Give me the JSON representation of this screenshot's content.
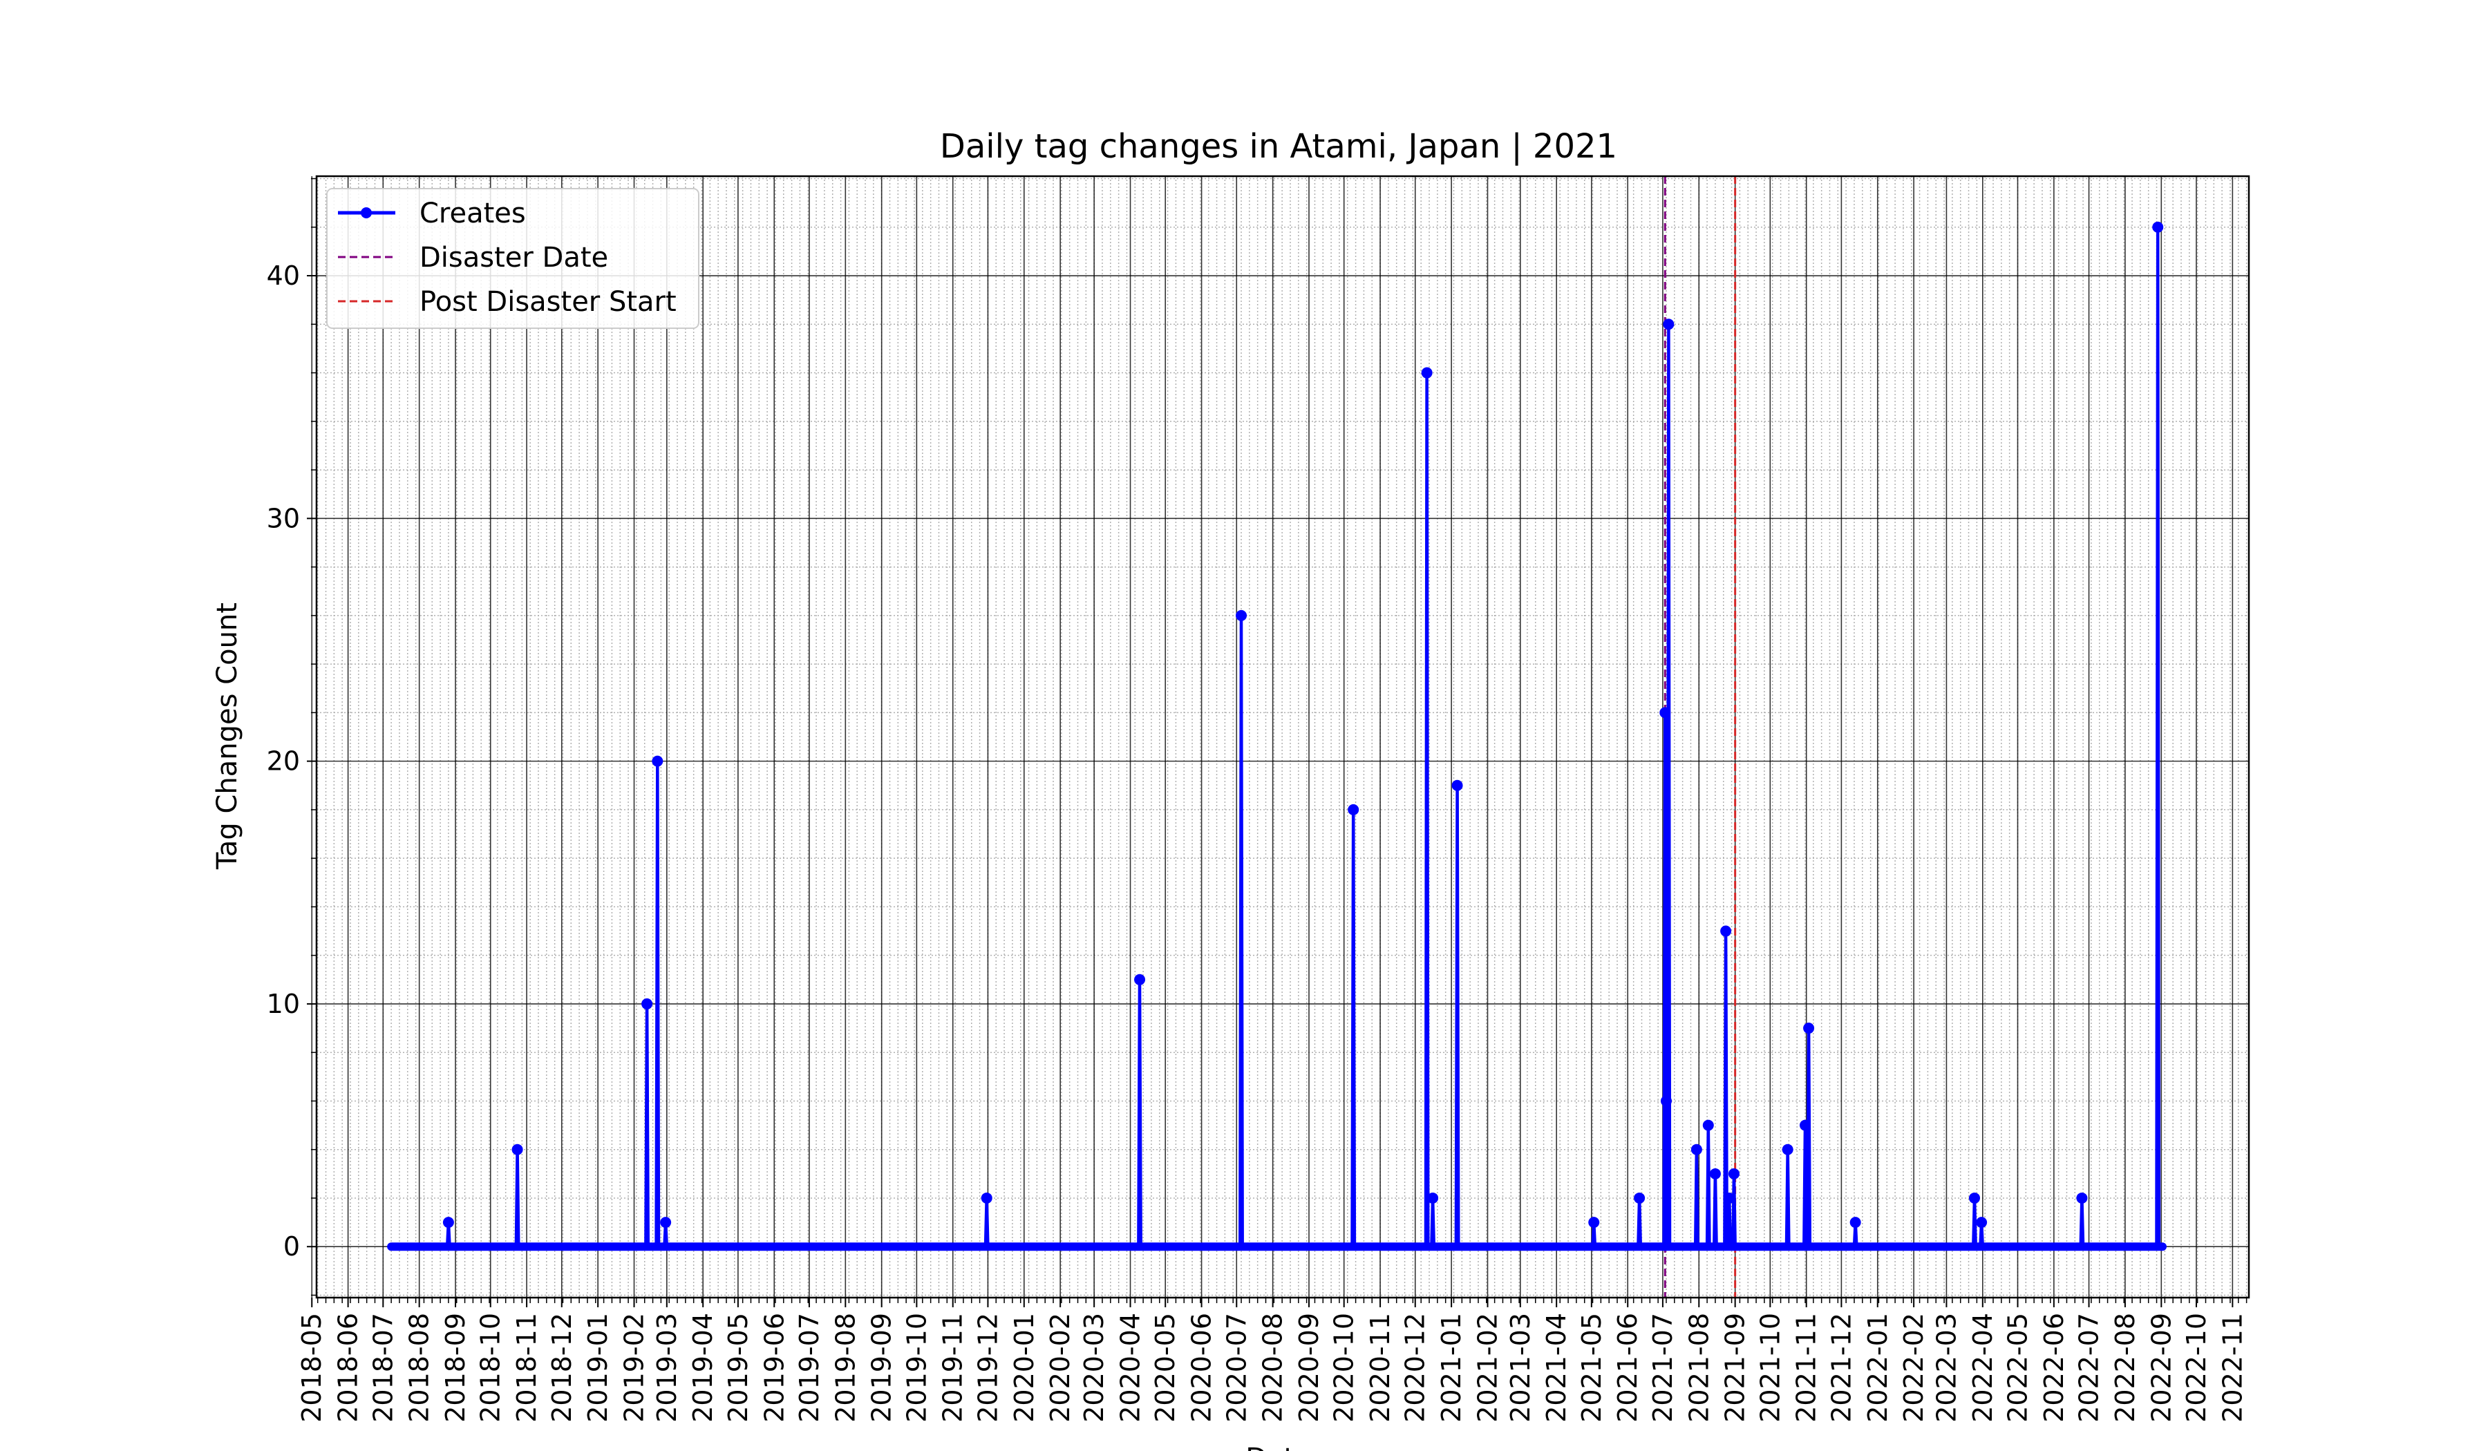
{
  "chart_data": {
    "type": "line",
    "title": "Daily tag changes in Atami, Japan | 2021",
    "xlabel": "Date",
    "ylabel": "Tag Changes Count",
    "xlim": [
      "2018-05-05",
      "2022-11-15"
    ],
    "ylim": [
      -2.1,
      44.1
    ],
    "grid": true,
    "legend_placement": "upper-left",
    "x_ticks": [
      "2018-05",
      "2018-06",
      "2018-07",
      "2018-08",
      "2018-09",
      "2018-10",
      "2018-11",
      "2018-12",
      "2019-01",
      "2019-02",
      "2019-03",
      "2019-04",
      "2019-05",
      "2019-06",
      "2019-07",
      "2019-08",
      "2019-09",
      "2019-10",
      "2019-11",
      "2019-12",
      "2020-01",
      "2020-02",
      "2020-03",
      "2020-04",
      "2020-05",
      "2020-06",
      "2020-07",
      "2020-08",
      "2020-09",
      "2020-10",
      "2020-11",
      "2020-12",
      "2021-01",
      "2021-02",
      "2021-03",
      "2021-04",
      "2021-05",
      "2021-06",
      "2021-07",
      "2021-08",
      "2021-09",
      "2021-10",
      "2021-11",
      "2021-12",
      "2022-01",
      "2022-02",
      "2022-03",
      "2022-04",
      "2022-05",
      "2022-06",
      "2022-07",
      "2022-08",
      "2022-09",
      "2022-10",
      "2022-11"
    ],
    "y_ticks": [
      0,
      10,
      20,
      30,
      40
    ],
    "series": [
      {
        "name": "Creates",
        "color": "#0000ff",
        "marker": "circle",
        "start": "2018-07-08",
        "end": "2022-09-02",
        "baseline": 0,
        "points": [
          [
            "2018-08-26",
            1
          ],
          [
            "2018-10-24",
            4
          ],
          [
            "2019-02-12",
            10
          ],
          [
            "2019-02-21",
            20
          ],
          [
            "2019-02-28",
            1
          ],
          [
            "2019-11-30",
            2
          ],
          [
            "2020-04-09",
            11
          ],
          [
            "2020-07-05",
            26
          ],
          [
            "2020-10-09",
            18
          ],
          [
            "2020-12-11",
            36
          ],
          [
            "2020-12-16",
            2
          ],
          [
            "2021-01-06",
            19
          ],
          [
            "2021-05-03",
            1
          ],
          [
            "2021-06-11",
            2
          ],
          [
            "2021-07-03",
            22
          ],
          [
            "2021-07-04",
            6
          ],
          [
            "2021-07-06",
            38
          ],
          [
            "2021-07-30",
            4
          ],
          [
            "2021-08-09",
            5
          ],
          [
            "2021-08-15",
            3
          ],
          [
            "2021-08-24",
            13
          ],
          [
            "2021-08-27",
            2
          ],
          [
            "2021-08-31",
            3
          ],
          [
            "2021-10-16",
            4
          ],
          [
            "2021-10-31",
            5
          ],
          [
            "2021-11-03",
            9
          ],
          [
            "2021-12-13",
            1
          ],
          [
            "2022-03-25",
            2
          ],
          [
            "2022-03-31",
            1
          ],
          [
            "2022-06-25",
            2
          ],
          [
            "2022-08-29",
            42
          ]
        ]
      }
    ],
    "reference_lines": [
      {
        "name": "Disaster Date",
        "date": "2021-07-03",
        "color": "#800080",
        "style": "dashed"
      },
      {
        "name": "Post Disaster Start",
        "date": "2021-09-01",
        "color": "#d62728",
        "style": "dashed"
      }
    ]
  }
}
